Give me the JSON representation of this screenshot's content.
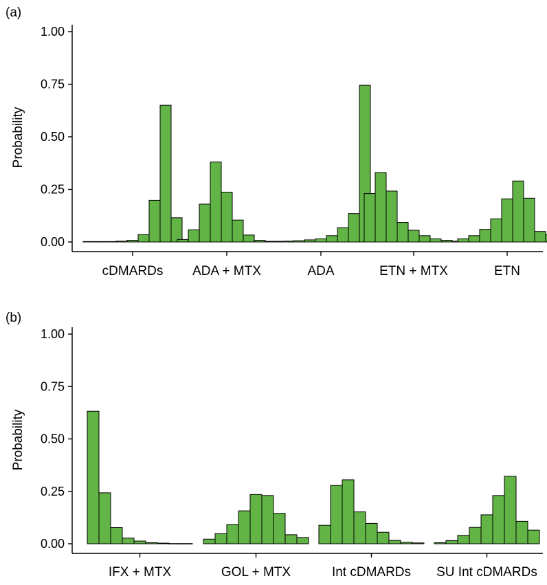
{
  "chart_data": [
    {
      "type": "bar",
      "panel_label": "(a)",
      "ylabel": "Probability",
      "ylim": [
        0,
        1
      ],
      "yticks": [
        "0.00",
        "0.25",
        "0.50",
        "0.75",
        "1.00"
      ],
      "bar_color": "#62b446",
      "grid": false,
      "groups": [
        {
          "label": "cDMARDs",
          "values": [
            0.002,
            0.002,
            0.002,
            0.004,
            0.008,
            0.035,
            0.198,
            0.65,
            0.115
          ]
        },
        {
          "label": "ADA + MTX",
          "values": [
            0.012,
            0.058,
            0.18,
            0.38,
            0.237,
            0.104,
            0.033,
            0.008,
            0.003
          ]
        },
        {
          "label": "ADA",
          "values": [
            0.003,
            0.004,
            0.006,
            0.01,
            0.015,
            0.03,
            0.068,
            0.135,
            0.745
          ]
        },
        {
          "label": "ETN + MTX",
          "values": [
            0.23,
            0.33,
            0.242,
            0.093,
            0.056,
            0.03,
            0.015,
            0.008,
            0.004
          ]
        },
        {
          "label": "ETN",
          "values": [
            0.015,
            0.03,
            0.06,
            0.11,
            0.205,
            0.29,
            0.208,
            0.05,
            0.035
          ]
        }
      ]
    },
    {
      "type": "bar",
      "panel_label": "(b)",
      "ylabel": "Probability",
      "ylim": [
        0,
        1
      ],
      "yticks": [
        "0.00",
        "0.25",
        "0.50",
        "0.75",
        "1.00"
      ],
      "bar_color": "#62b446",
      "grid": false,
      "groups": [
        {
          "label": "IFX + MTX",
          "values": [
            0.632,
            0.243,
            0.077,
            0.027,
            0.013,
            0.005,
            0.003,
            0.001,
            0.001
          ]
        },
        {
          "label": "GOL + MTX",
          "values": [
            0.022,
            0.048,
            0.092,
            0.157,
            0.235,
            0.23,
            0.145,
            0.043,
            0.03
          ]
        },
        {
          "label": "Int cDMARDs",
          "values": [
            0.088,
            0.278,
            0.305,
            0.152,
            0.097,
            0.055,
            0.016,
            0.007,
            0.004
          ]
        },
        {
          "label": "SU Int cDMARDs",
          "values": [
            0.005,
            0.015,
            0.04,
            0.078,
            0.138,
            0.23,
            0.322,
            0.107,
            0.065
          ]
        }
      ]
    }
  ]
}
